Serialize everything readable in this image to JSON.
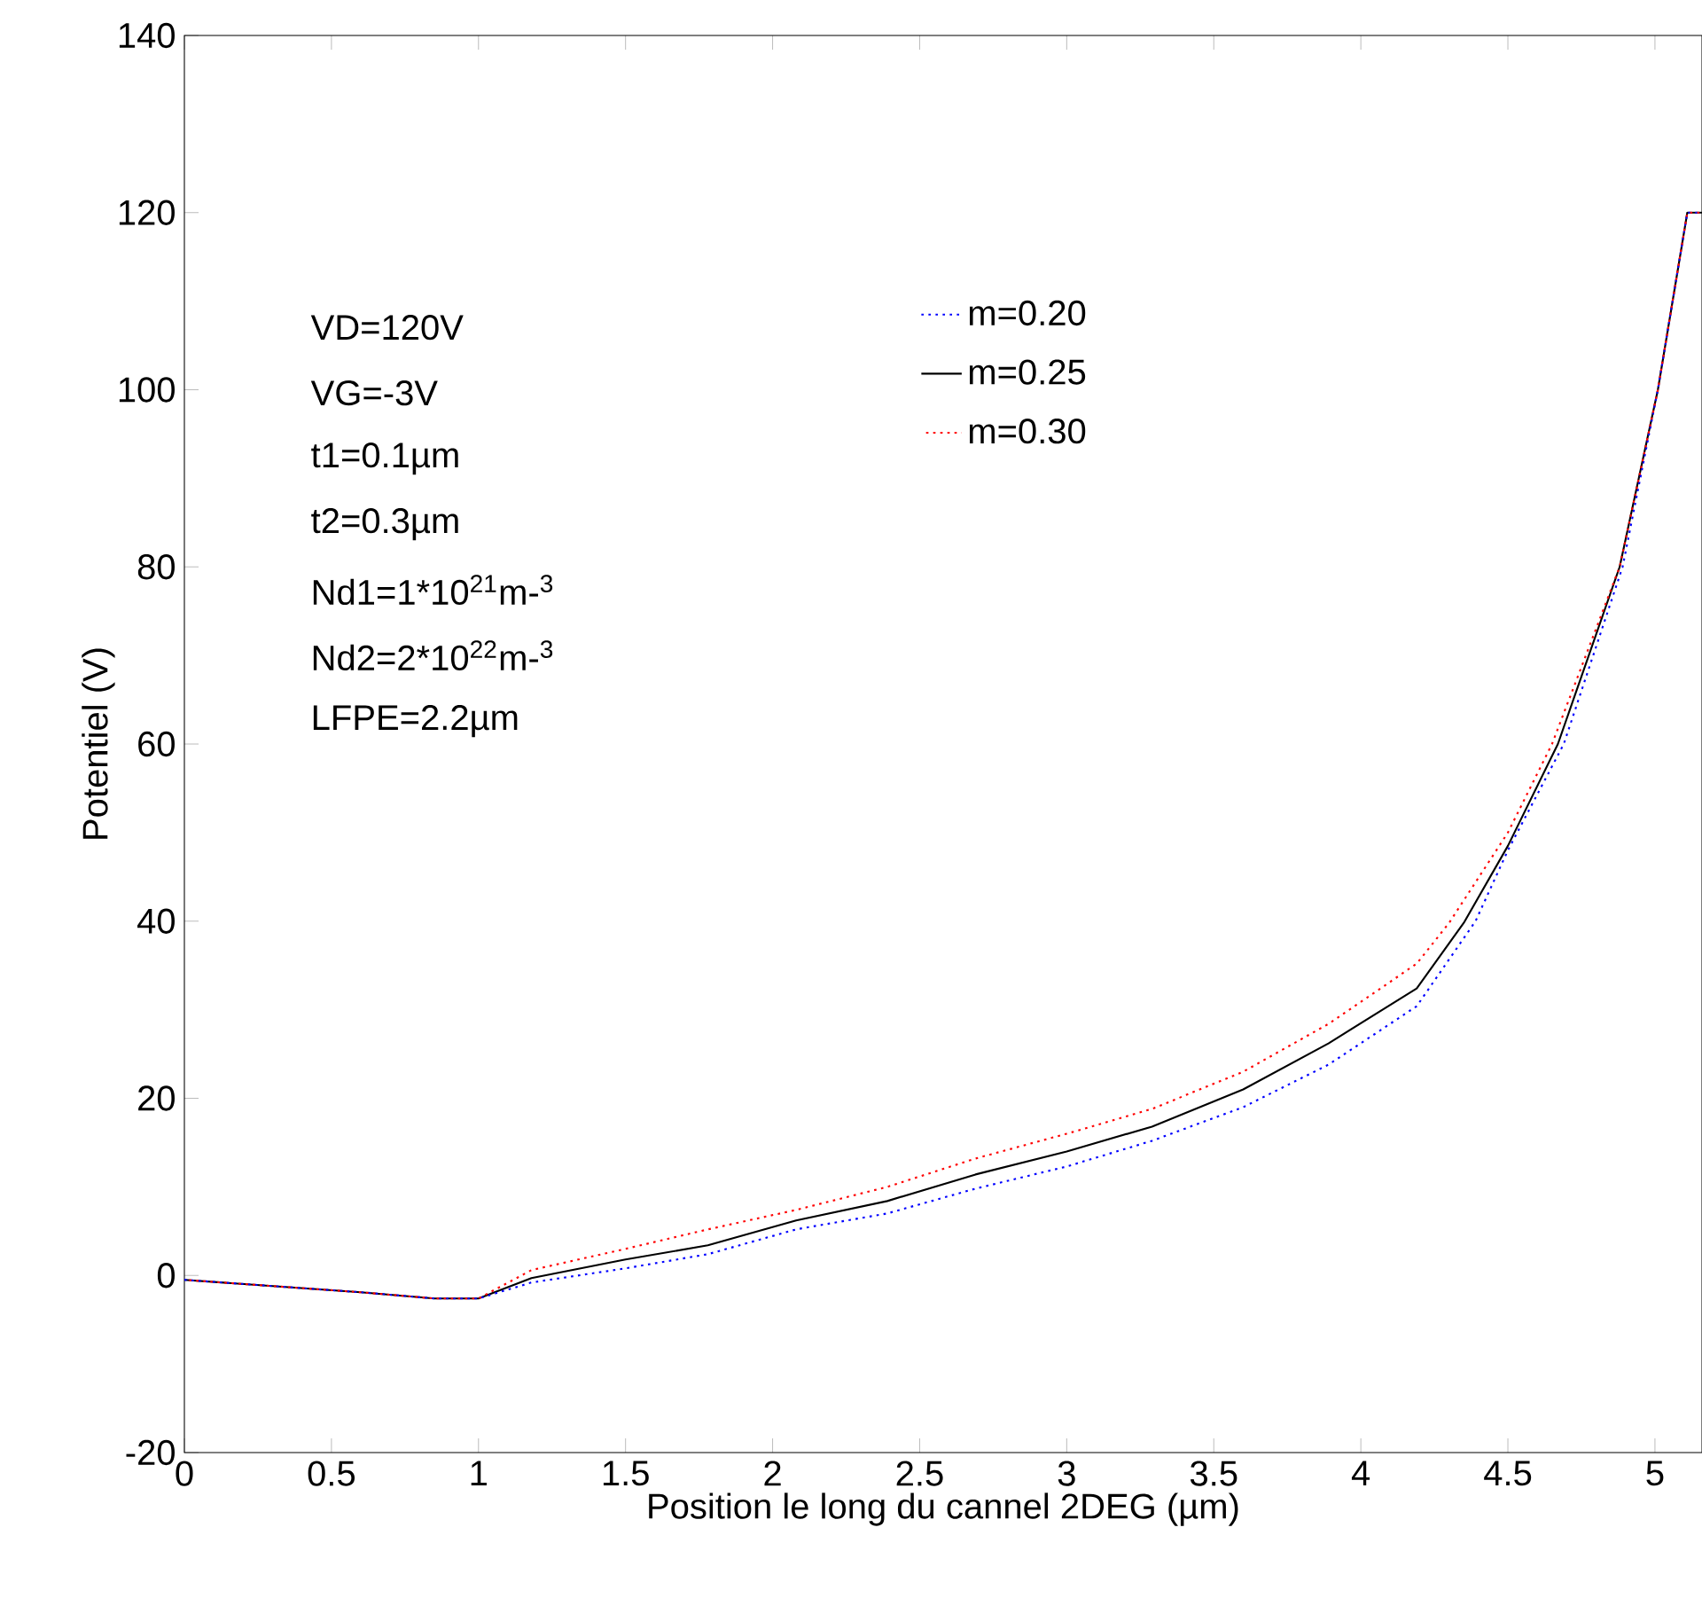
{
  "chart_data": {
    "type": "line",
    "xlabel": "Position le long du cannel 2DEG (µm)",
    "ylabel": "Potentiel (V)",
    "xlim": [
      0,
      5.16
    ],
    "ylim": [
      -20,
      140
    ],
    "xticks": [
      0,
      0.5,
      1,
      1.5,
      2,
      2.5,
      3,
      3.5,
      4,
      4.5,
      5
    ],
    "yticks": [
      -20,
      0,
      20,
      40,
      60,
      80,
      100,
      120,
      140
    ],
    "legend": "top",
    "annotations": [
      "VD=120V",
      "VG=-3V",
      "t1=0.1µm",
      "t2=0.3µm",
      "Nd1=1*10$^{21}$m-$^{3}$",
      "Nd2=2*10$^{22}$m-$^{3}$",
      "LFPE=2.2µm"
    ],
    "series": [
      {
        "name": "m=0.20",
        "color": "#0000ff",
        "line_style": "dotted",
        "x": [
          0,
          0.3,
          0.6,
          0.85,
          1.0,
          1.18,
          1.5,
          1.78,
          2.08,
          2.39,
          2.69,
          3.0,
          3.29,
          3.6,
          3.89,
          4.19,
          4.39,
          4.5,
          4.69,
          4.89,
          5.01,
          5.11,
          5.16
        ],
        "values": [
          -0.5,
          -1.2,
          -1.9,
          -2.6,
          -2.6,
          -0.8,
          0.8,
          2.4,
          5.2,
          7.0,
          9.8,
          12.3,
          15.2,
          19,
          23.8,
          30.4,
          40,
          48,
          60,
          80,
          100,
          120,
          120
        ]
      },
      {
        "name": "m=0.25",
        "color": "#000000",
        "line_style": "solid",
        "x": [
          0,
          0.3,
          0.6,
          0.85,
          1.0,
          1.18,
          1.5,
          1.78,
          2.08,
          2.39,
          2.69,
          3.0,
          3.29,
          3.6,
          3.89,
          4.19,
          4.35,
          4.5,
          4.67,
          4.88,
          5.01,
          5.11,
          5.16
        ],
        "values": [
          -0.5,
          -1.2,
          -1.9,
          -2.6,
          -2.6,
          -0.3,
          1.8,
          3.4,
          6.2,
          8.4,
          11.4,
          14,
          16.8,
          21,
          26.2,
          32.4,
          39.8,
          48.5,
          60,
          80,
          100,
          120,
          120
        ]
      },
      {
        "name": "m=0.30",
        "color": "#ff0000",
        "line_style": "dotted",
        "x": [
          0,
          0.3,
          0.6,
          0.85,
          1.0,
          1.18,
          1.5,
          1.78,
          2.08,
          2.39,
          2.69,
          3.0,
          3.29,
          3.6,
          3.89,
          4.19,
          4.3,
          4.5,
          4.65,
          4.88,
          5.01,
          5.11,
          5.16
        ],
        "values": [
          -0.5,
          -1.2,
          -1.9,
          -2.6,
          -2.6,
          0.6,
          3.0,
          5.2,
          7.4,
          10,
          13.2,
          16,
          18.8,
          23,
          28.4,
          35.2,
          39.8,
          50,
          60,
          80,
          100,
          120,
          120
        ]
      }
    ]
  }
}
